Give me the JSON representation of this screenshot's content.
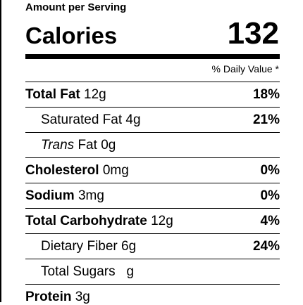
{
  "header": {
    "amount_per_serving": "Amount per Serving",
    "calories_label": "Calories",
    "calories_value": "132",
    "daily_value_header": "% Daily Value *"
  },
  "nutrients": [
    {
      "name": "Total Fat",
      "amount": "12g",
      "daily_value": "18%"
    },
    {
      "name": "Saturated Fat",
      "amount": "4g",
      "daily_value": "21%"
    },
    {
      "name_italic": "Trans",
      "name": "Fat",
      "amount": "0g",
      "daily_value": ""
    },
    {
      "name": "Cholesterol",
      "amount": "0mg",
      "daily_value": "0%"
    },
    {
      "name": "Sodium",
      "amount": "3mg",
      "daily_value": "0%"
    },
    {
      "name": "Total Carbohydrate",
      "amount": "12g",
      "daily_value": "4%"
    },
    {
      "name": "Dietary Fiber",
      "amount": "6g",
      "daily_value": "24%"
    },
    {
      "name": "Total Sugars",
      "amount": "g",
      "daily_value": ""
    },
    {
      "name": "Protein",
      "amount": "3g",
      "daily_value": ""
    }
  ]
}
